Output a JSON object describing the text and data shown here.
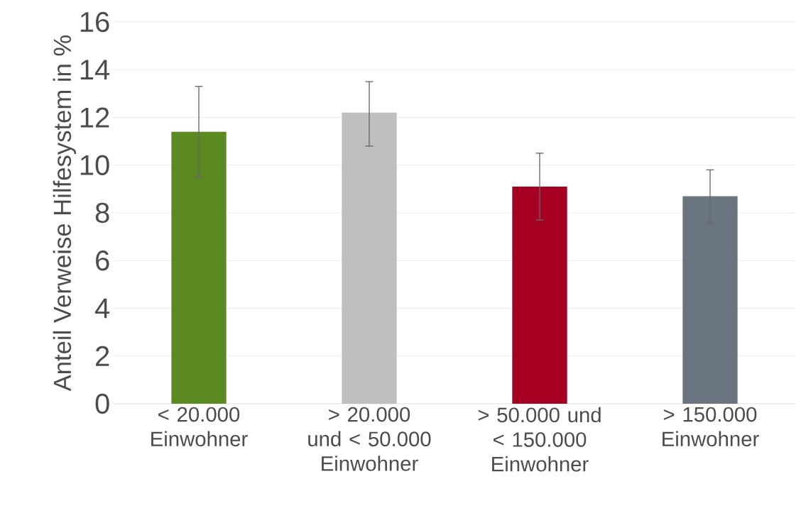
{
  "chart_data": {
    "type": "bar",
    "ylabel": "Anteil Verweise Hilfesystem in %",
    "categories": [
      "< 20.000 Einwohner",
      "> 20.000 und < 50.000 Einwohner",
      "> 50.000 und < 150.000 Einwohner",
      "> 150.000 Einwohner"
    ],
    "values": [
      11.4,
      12.2,
      9.1,
      8.7
    ],
    "colors": [
      "#5b8a23",
      "#bfbfbf",
      "#a50021",
      "#6b7580"
    ],
    "errors": [
      [
        9.5,
        13.3
      ],
      [
        10.8,
        13.5
      ],
      [
        7.7,
        10.5
      ],
      [
        7.6,
        9.8
      ]
    ],
    "ylim": [
      0,
      16
    ],
    "yticks": [
      0,
      2,
      4,
      6,
      8,
      10,
      12,
      14,
      16
    ],
    "grid": "y"
  }
}
